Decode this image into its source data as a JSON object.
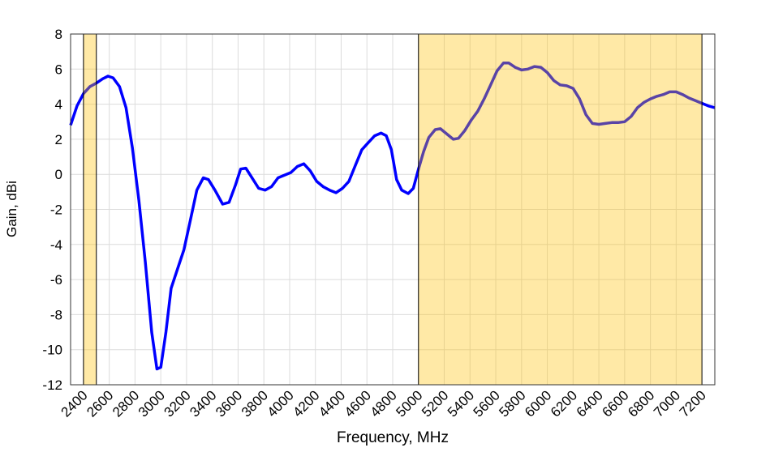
{
  "chart_data": {
    "type": "line",
    "x_label": "Frequency, MHz",
    "y_label": "Gain, dBi",
    "xlim": [
      2300,
      7300
    ],
    "ylim": [
      -12,
      8
    ],
    "xticks": [
      2400,
      2600,
      2800,
      3000,
      3200,
      3400,
      3600,
      3800,
      4000,
      4200,
      4400,
      4600,
      4800,
      5000,
      5200,
      5400,
      5600,
      5800,
      6000,
      6200,
      6400,
      6600,
      6800,
      7000,
      7200
    ],
    "yticks": [
      -12,
      -10,
      -8,
      -6,
      -4,
      -2,
      0,
      2,
      4,
      6,
      8
    ],
    "grid": true,
    "bands": [
      [
        2400,
        2500
      ],
      [
        5000,
        7200
      ]
    ],
    "band_color": "#ffc000",
    "series": [
      {
        "color": "#0000ff",
        "x": [
          2300,
          2350,
          2400,
          2450,
          2500,
          2550,
          2590,
          2630,
          2680,
          2730,
          2780,
          2830,
          2880,
          2930,
          2970,
          3000,
          3040,
          3080,
          3130,
          3180,
          3230,
          3280,
          3330,
          3370,
          3420,
          3480,
          3530,
          3580,
          3620,
          3660,
          3700,
          3760,
          3810,
          3860,
          3910,
          3960,
          4010,
          4060,
          4110,
          4160,
          4210,
          4260,
          4310,
          4360,
          4410,
          4460,
          4510,
          4560,
          4610,
          4660,
          4710,
          4750,
          4790,
          4830,
          4870,
          4920,
          4960,
          5000,
          5040,
          5080,
          5130,
          5170,
          5220,
          5270,
          5310,
          5360,
          5410,
          5460,
          5510,
          5560,
          5610,
          5660,
          5700,
          5750,
          5800,
          5850,
          5900,
          5950,
          6000,
          6050,
          6100,
          6150,
          6200,
          6250,
          6300,
          6350,
          6400,
          6450,
          6500,
          6550,
          6600,
          6650,
          6700,
          6750,
          6800,
          6850,
          6900,
          6950,
          7000,
          7050,
          7100,
          7150,
          7200,
          7250,
          7300
        ],
        "values": [
          2.8,
          3.9,
          4.6,
          5.0,
          5.2,
          5.45,
          5.6,
          5.5,
          5.0,
          3.8,
          1.5,
          -1.5,
          -5,
          -9,
          -11.1,
          -11.0,
          -9,
          -6.5,
          -5.4,
          -4.3,
          -2.6,
          -0.9,
          -0.2,
          -0.3,
          -0.9,
          -1.7,
          -1.6,
          -0.6,
          0.3,
          0.35,
          -0.1,
          -0.8,
          -0.9,
          -0.7,
          -0.2,
          -0.05,
          0.1,
          0.45,
          0.6,
          0.2,
          -0.4,
          -0.7,
          -0.9,
          -1.05,
          -0.8,
          -0.4,
          0.5,
          1.4,
          1.8,
          2.2,
          2.35,
          2.2,
          1.4,
          -0.3,
          -0.9,
          -1.1,
          -0.8,
          0.3,
          1.3,
          2.1,
          2.55,
          2.6,
          2.3,
          2.0,
          2.05,
          2.5,
          3.1,
          3.6,
          4.3,
          5.1,
          5.9,
          6.35,
          6.35,
          6.1,
          5.95,
          6.0,
          6.15,
          6.1,
          5.8,
          5.35,
          5.1,
          5.05,
          4.9,
          4.3,
          3.4,
          2.9,
          2.85,
          2.9,
          2.95,
          2.95,
          3.0,
          3.3,
          3.8,
          4.1,
          4.3,
          4.45,
          4.55,
          4.7,
          4.7,
          4.55,
          4.35,
          4.2,
          4.05,
          3.9,
          3.8
        ]
      }
    ]
  }
}
